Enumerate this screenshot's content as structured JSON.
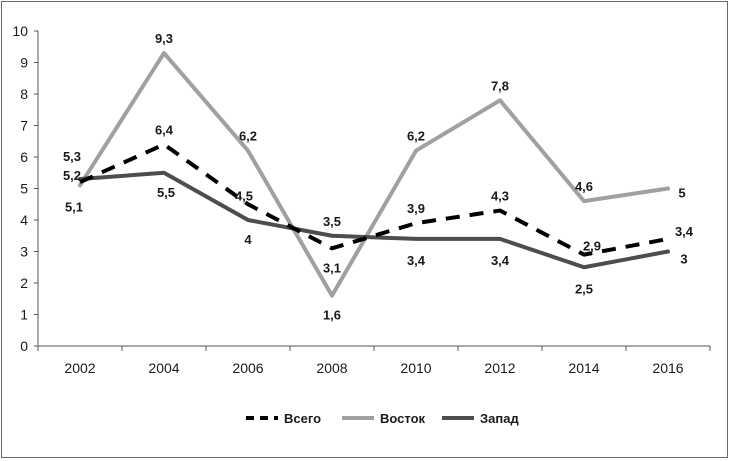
{
  "chart_data": {
    "type": "line",
    "x": [
      "2002",
      "2004",
      "2006",
      "2008",
      "2010",
      "2012",
      "2014",
      "2016"
    ],
    "ylim": [
      0,
      10
    ],
    "yticks": [
      "0",
      "1",
      "2",
      "3",
      "4",
      "5",
      "6",
      "7",
      "8",
      "9",
      "10"
    ],
    "grid": false,
    "legend_position": "bottom",
    "series": [
      {
        "name": "Всего",
        "values": [
          5.2,
          6.4,
          4.5,
          3.1,
          3.9,
          4.3,
          2.9,
          3.4
        ],
        "labels": [
          "5,2",
          "6,4",
          "4,5",
          "3,1",
          "3,9",
          "4,3",
          "2,9",
          "3,4"
        ],
        "color": "#000000",
        "style": "dashed"
      },
      {
        "name": "Восток",
        "values": [
          5.1,
          9.3,
          6.2,
          1.6,
          6.2,
          7.8,
          4.6,
          5.0
        ],
        "labels": [
          "5,1",
          "9,3",
          "6,2",
          "1,6",
          "6,2",
          "7,8",
          "4,6",
          "5"
        ],
        "color": "#a0a0a0",
        "style": "solid"
      },
      {
        "name": "Запад",
        "values": [
          5.3,
          5.5,
          4.0,
          3.5,
          3.4,
          3.4,
          2.5,
          3.0
        ],
        "labels": [
          "5,3",
          "5,5",
          "4",
          "3,5",
          "3,4",
          "3,4",
          "2,5",
          "3"
        ],
        "color": "#4d4d4d",
        "style": "solid"
      }
    ]
  }
}
